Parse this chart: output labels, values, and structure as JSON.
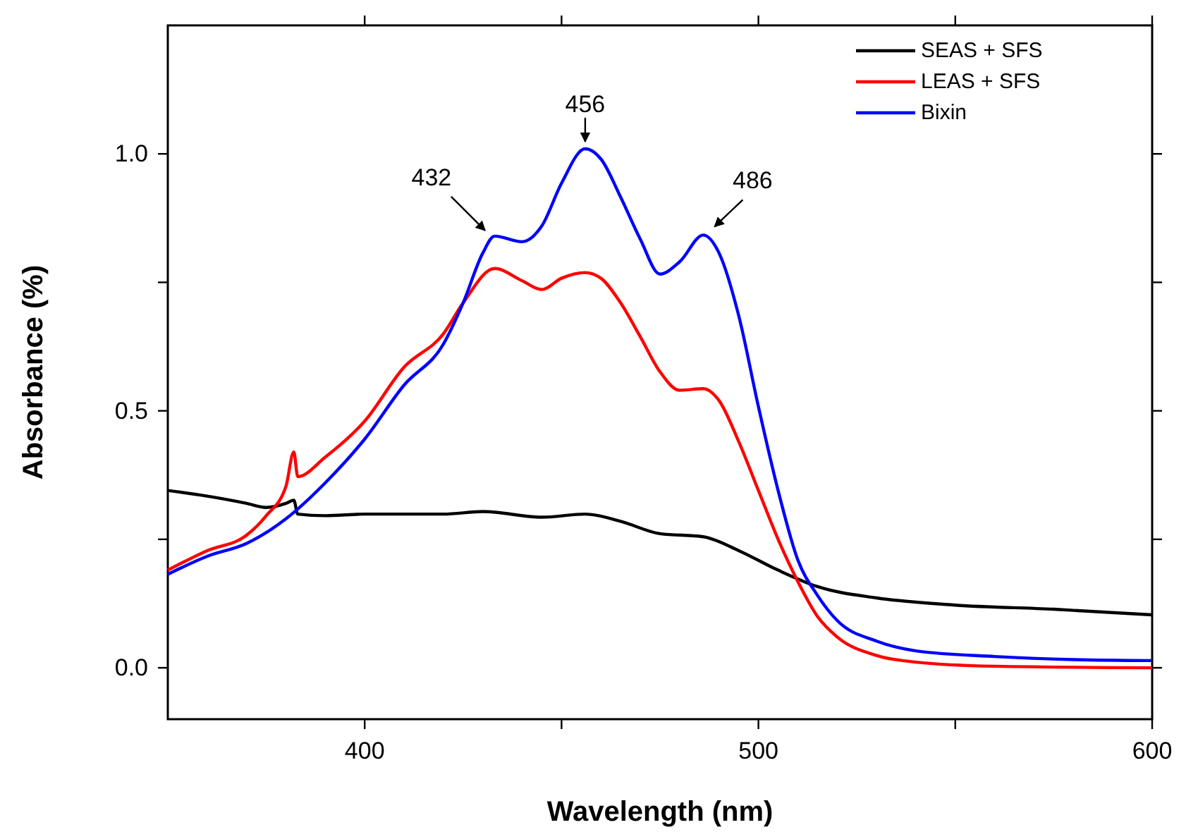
{
  "chart_data": {
    "type": "line",
    "xlabel": "Wavelength (nm)",
    "ylabel": "Absorbance (%)",
    "xlim": [
      350,
      600
    ],
    "ylim": [
      -0.1,
      1.25
    ],
    "xticks": [
      400,
      {
        "value": 450,
        "label": null
      },
      500,
      {
        "value": 550,
        "label": null
      },
      600
    ],
    "yticks": [
      {
        "value": 0,
        "label": "0.0"
      },
      {
        "value": 0.25,
        "label": null
      },
      0.5,
      {
        "value": 0.75,
        "label": null
      },
      {
        "value": 1,
        "label": "1.0"
      }
    ],
    "grid": false,
    "legend": "top right",
    "marker": "none",
    "line_style": "solid",
    "annotations": [
      {
        "text": "432",
        "x": 432,
        "y": 0.84
      },
      {
        "text": "456",
        "x": 456,
        "y": 1.01
      },
      {
        "text": "486",
        "x": 486,
        "y": 0.842
      }
    ],
    "series": [
      {
        "name": "SEAS + SFS",
        "color": "#000000",
        "x": [
          350,
          360,
          370,
          375,
          380,
          382,
          383,
          390,
          400,
          420,
          430,
          445,
          456,
          465,
          475,
          486,
          495,
          505,
          515,
          530,
          550,
          575,
          600
        ],
        "values": [
          0.345,
          0.334,
          0.32,
          0.312,
          0.32,
          0.326,
          0.299,
          0.296,
          0.299,
          0.299,
          0.304,
          0.293,
          0.299,
          0.285,
          0.261,
          0.255,
          0.228,
          0.19,
          0.158,
          0.136,
          0.122,
          0.114,
          0.103
        ]
      },
      {
        "name": "LEAS + SFS",
        "color": "#ff0000",
        "x": [
          350,
          360,
          370,
          375,
          380,
          382,
          383,
          390,
          400,
          410,
          420,
          425,
          433,
          440,
          445,
          450,
          456,
          460,
          465,
          470,
          475,
          480,
          486,
          490,
          495,
          500,
          505,
          510,
          515,
          520,
          530,
          540,
          560,
          600
        ],
        "values": [
          0.19,
          0.228,
          0.258,
          0.296,
          0.353,
          0.42,
          0.372,
          0.41,
          0.48,
          0.585,
          0.65,
          0.71,
          0.777,
          0.753,
          0.736,
          0.758,
          0.769,
          0.758,
          0.71,
          0.644,
          0.576,
          0.54,
          0.543,
          0.52,
          0.44,
          0.345,
          0.25,
          0.168,
          0.1,
          0.06,
          0.024,
          0.011,
          0.003,
          0.0
        ]
      },
      {
        "name": "Bixin",
        "color": "#0000ff",
        "x": [
          350,
          360,
          370,
          380,
          390,
          400,
          410,
          420,
          425,
          430,
          433,
          440,
          445,
          450,
          456,
          460,
          465,
          470,
          475,
          480,
          486,
          490,
          495,
          500,
          505,
          510,
          515,
          520,
          530,
          540,
          560,
          580,
          600
        ],
        "values": [
          0.182,
          0.217,
          0.242,
          0.29,
          0.36,
          0.445,
          0.55,
          0.63,
          0.71,
          0.807,
          0.84,
          0.829,
          0.86,
          0.943,
          1.01,
          0.99,
          0.916,
          0.834,
          0.766,
          0.79,
          0.842,
          0.807,
          0.685,
          0.508,
          0.345,
          0.21,
          0.141,
          0.092,
          0.052,
          0.033,
          0.022,
          0.016,
          0.014
        ]
      }
    ]
  }
}
